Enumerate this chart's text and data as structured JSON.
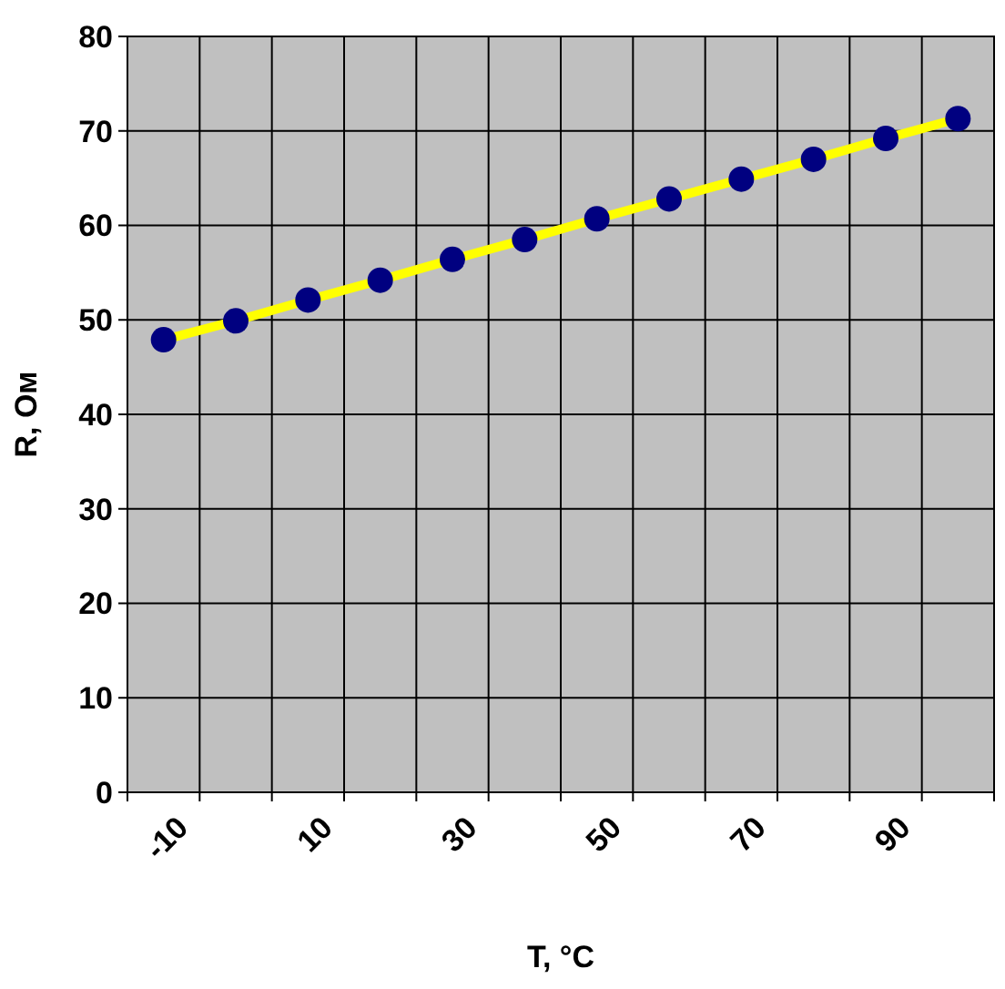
{
  "chart_data": {
    "type": "line",
    "xlabel": "T, °C",
    "ylabel": "R, Ом",
    "categories": [
      "-10",
      null,
      "10",
      null,
      "30",
      null,
      "50",
      null,
      "70",
      null,
      "90",
      null
    ],
    "series": [
      {
        "color": "#ffff00",
        "values": [
          47.9,
          49.9,
          52.1,
          54.2,
          56.4,
          58.5,
          60.7,
          62.8,
          64.9,
          67.0,
          69.2,
          71.3
        ]
      }
    ],
    "ylim": [
      0,
      80
    ],
    "yticks": [
      0,
      10,
      20,
      30,
      40,
      50,
      60,
      70,
      80
    ],
    "grid": true,
    "marker": "circle",
    "line_style": "solid"
  }
}
